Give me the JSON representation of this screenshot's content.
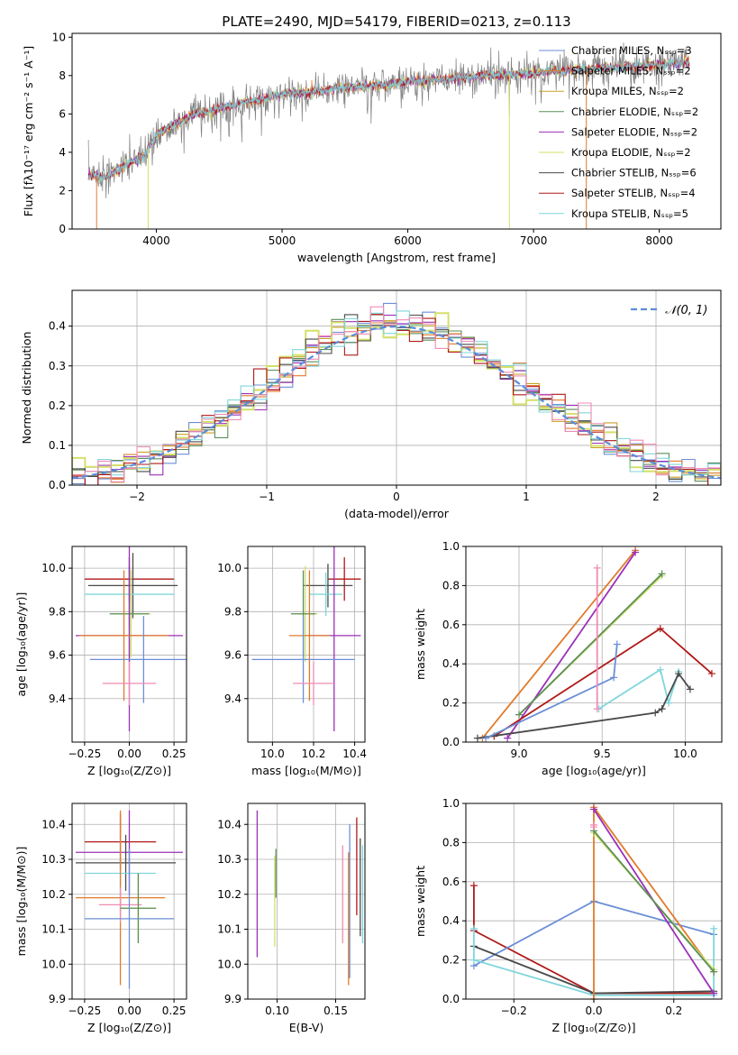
{
  "figure": {
    "title": "PLATE=2490, MJD=54179, FIBERID=0213, z=0.113"
  },
  "colors": {
    "Chabrier MILES": "#6b8fd6",
    "Salpeter MILES": "#e07b2c",
    "Kroupa MILES": "#c9a227",
    "Chabrier ELODIE": "#5a8f5a",
    "Salpeter ELODIE": "#9b30b8",
    "Kroupa ELODIE": "#d4e06a",
    "Chabrier STELIB": "#4a4a4a",
    "Salpeter STELIB": "#b01818",
    "Kroupa STELIB": "#7fd6db",
    "Pink": "#f08cb4",
    "Gauss": "#5b8dd9",
    "Data": "#808080"
  },
  "chart_data": [
    {
      "id": "spectrum",
      "type": "line",
      "xlabel": "wavelength [Angstrom, rest frame]",
      "ylabel": "Flux [fλ10⁻¹⁷ erg cm⁻² s⁻¹ A⁻¹]",
      "xlim": [
        3330,
        8490
      ],
      "ylim": [
        0,
        10.2
      ],
      "xticks": [
        4000,
        5000,
        6000,
        7000,
        8000
      ],
      "yticks": [
        0,
        2,
        4,
        6,
        8,
        10
      ],
      "grid": false,
      "legend_position": "upper-right",
      "legend": [
        "Chabrier MILES, Nₛₛₚ=3",
        "Salpeter MILES, Nₛₛₚ=2",
        "Kroupa MILES, Nₛₛₚ=2",
        "Chabrier ELODIE, Nₛₛₚ=2",
        "Salpeter ELODIE, Nₛₛₚ=2",
        "Kroupa ELODIE, Nₛₛₚ=2",
        "Chabrier STELIB, Nₛₛₚ=6",
        "Salpeter STELIB, Nₛₛₚ=4",
        "Kroupa STELIB, Nₛₛₚ=5"
      ],
      "x": [
        3500,
        3600,
        3700,
        3800,
        3900,
        4000,
        4100,
        4200,
        4300,
        4400,
        4500,
        4600,
        4700,
        4800,
        4900,
        5000,
        5100,
        5200,
        5300,
        5400,
        5500,
        5600,
        5700,
        5800,
        5900,
        6000,
        6100,
        6200,
        6300,
        6400,
        6500,
        6600,
        6700,
        6800,
        6900,
        7000,
        7100,
        7200,
        7300,
        7400,
        7500,
        7600,
        7700,
        7800,
        7900,
        8000,
        8100,
        8200
      ],
      "series": [
        {
          "name": "data",
          "values": [
            2.9,
            2.8,
            3.2,
            3.5,
            3.8,
            4.8,
            5.3,
            5.7,
            6.0,
            6.1,
            6.3,
            6.4,
            6.6,
            6.7,
            6.9,
            7.0,
            7.1,
            7.1,
            7.2,
            7.3,
            7.4,
            7.4,
            7.5,
            7.5,
            7.6,
            7.7,
            7.7,
            7.8,
            7.8,
            7.9,
            7.9,
            8.0,
            8.0,
            8.1,
            8.1,
            8.1,
            8.2,
            8.2,
            8.3,
            8.3,
            8.4,
            8.4,
            8.4,
            8.5,
            8.5,
            8.6,
            8.6,
            8.7
          ]
        },
        {
          "name": "model",
          "values": [
            2.8,
            2.7,
            3.1,
            3.5,
            3.8,
            4.9,
            5.3,
            5.6,
            6.0,
            6.1,
            6.3,
            6.4,
            6.6,
            6.7,
            6.9,
            7.0,
            7.1,
            7.1,
            7.2,
            7.3,
            7.4,
            7.4,
            7.5,
            7.5,
            7.6,
            7.7,
            7.7,
            7.8,
            7.8,
            7.9,
            7.9,
            8.0,
            8.0,
            8.1,
            8.1,
            8.1,
            8.2,
            8.2,
            8.3,
            8.3,
            8.4,
            8.4,
            8.4,
            8.5,
            8.5,
            8.6,
            8.6,
            8.7
          ]
        }
      ]
    },
    {
      "id": "residuals",
      "type": "histogram",
      "xlabel": "(data-model)/error",
      "ylabel": "Normed distribution",
      "xlim": [
        -2.5,
        2.5
      ],
      "ylim": [
        0,
        0.49
      ],
      "xticks": [
        -2,
        -1,
        0,
        1,
        2
      ],
      "yticks": [
        0.0,
        0.1,
        0.2,
        0.3,
        0.4
      ],
      "grid": true,
      "legend_position": "upper-right",
      "legend": [
        "𝒩(0, 1)"
      ],
      "bin_width": 0.1
    },
    {
      "id": "age-vs-Z",
      "type": "errorbar",
      "xlabel": "Z [log₁₀(Z/Z⊙)]",
      "ylabel": "age  [log₁₀(age/yr)]",
      "xlim": [
        -0.32,
        0.32
      ],
      "ylim": [
        9.2,
        10.1
      ],
      "xticks": [
        -0.25,
        0.0,
        0.25
      ],
      "yticks": [
        9.4,
        9.6,
        9.8,
        10.0
      ],
      "grid": true,
      "points": [
        {
          "model": "Salpeter STELIB",
          "x": 0.0,
          "y": 9.95,
          "xerr": 0.25,
          "yerr": 0.1
        },
        {
          "model": "Chabrier STELIB",
          "x": 0.02,
          "y": 9.92,
          "xerr": 0.25,
          "yerr": 0.15
        },
        {
          "model": "Kroupa STELIB",
          "x": 0.0,
          "y": 9.88,
          "xerr": 0.25,
          "yerr": 0.15
        },
        {
          "model": "Kroupa ELODIE",
          "x": 0.01,
          "y": 9.79,
          "xerr": 0.11,
          "yerr": 0.2
        },
        {
          "model": "Chabrier ELODIE",
          "x": 0.0,
          "y": 9.79,
          "xerr": 0.11,
          "yerr": 0.22
        },
        {
          "model": "Salpeter ELODIE",
          "x": 0.0,
          "y": 9.69,
          "xerr": 0.3,
          "yerr": 0.44
        },
        {
          "model": "Salpeter MILES",
          "x": -0.03,
          "y": 9.69,
          "xerr": 0.25,
          "yerr": 0.3
        },
        {
          "model": "Chabrier MILES",
          "x": 0.08,
          "y": 9.58,
          "xerr": 0.3,
          "yerr": 0.2
        },
        {
          "model": "Pink",
          "x": 0.0,
          "y": 9.47,
          "xerr": 0.15,
          "yerr": 0.1
        }
      ]
    },
    {
      "id": "age-vs-mass",
      "type": "errorbar",
      "xlabel": "mass [log₁₀(M/M⊙)]",
      "ylabel": "",
      "xlim": [
        9.88,
        10.45
      ],
      "ylim": [
        9.2,
        10.1
      ],
      "xticks": [
        10.0,
        10.2,
        10.4
      ],
      "yticks": [
        9.4,
        9.6,
        9.8,
        10.0
      ],
      "grid": true,
      "points": [
        {
          "model": "Salpeter STELIB",
          "x": 10.35,
          "y": 9.95,
          "xerr": 0.08,
          "yerr": 0.1
        },
        {
          "model": "Chabrier STELIB",
          "x": 10.27,
          "y": 9.92,
          "xerr": 0.12,
          "yerr": 0.1
        },
        {
          "model": "Kroupa STELIB",
          "x": 10.26,
          "y": 9.88,
          "xerr": 0.08,
          "yerr": 0.1
        },
        {
          "model": "Kroupa ELODIE",
          "x": 10.16,
          "y": 9.79,
          "xerr": 0.06,
          "yerr": 0.22
        },
        {
          "model": "Chabrier ELODIE",
          "x": 10.15,
          "y": 9.79,
          "xerr": 0.06,
          "yerr": 0.2
        },
        {
          "model": "Salpeter ELODIE",
          "x": 10.3,
          "y": 9.69,
          "xerr": 0.13,
          "yerr": 0.44
        },
        {
          "model": "Salpeter MILES",
          "x": 10.18,
          "y": 9.69,
          "xerr": 0.1,
          "yerr": 0.3
        },
        {
          "model": "Chabrier MILES",
          "x": 10.15,
          "y": 9.58,
          "xerr": 0.25,
          "yerr": 0.2
        },
        {
          "model": "Pink",
          "x": 10.2,
          "y": 9.47,
          "xerr": 0.1,
          "yerr": 0.1
        }
      ]
    },
    {
      "id": "weight-vs-age",
      "type": "line",
      "xlabel": "age  [log₁₀(age/yr)]",
      "ylabel": "mass weight",
      "xlim": [
        8.68,
        10.22
      ],
      "ylim": [
        0,
        1.0
      ],
      "xticks": [
        9.0,
        9.5,
        10.0
      ],
      "yticks": [
        0.0,
        0.2,
        0.4,
        0.6,
        0.8,
        1.0
      ],
      "grid": true,
      "series": [
        {
          "model": "Salpeter MILES",
          "points": [
            [
              8.78,
              0.02
            ],
            [
              9.7,
              0.98
            ]
          ]
        },
        {
          "model": "Salpeter ELODIE",
          "points": [
            [
              8.93,
              0.02
            ],
            [
              9.7,
              0.97
            ]
          ]
        },
        {
          "model": "Kroupa ELODIE",
          "points": [
            [
              9.0,
              0.14
            ],
            [
              9.86,
              0.85
            ]
          ]
        },
        {
          "model": "Chabrier ELODIE",
          "points": [
            [
              9.0,
              0.14
            ],
            [
              9.86,
              0.86
            ]
          ]
        },
        {
          "model": "Salpeter STELIB",
          "points": [
            [
              8.85,
              0.03
            ],
            [
              9.85,
              0.58
            ],
            [
              10.16,
              0.35
            ]
          ]
        },
        {
          "model": "Kroupa STELIB",
          "points": [
            [
              9.48,
              0.17
            ],
            [
              9.85,
              0.37
            ],
            [
              9.9,
              0.2
            ],
            [
              9.96,
              0.36
            ]
          ]
        },
        {
          "model": "Chabrier STELIB",
          "points": [
            [
              8.75,
              0.02
            ],
            [
              9.82,
              0.15
            ],
            [
              9.86,
              0.17
            ],
            [
              9.96,
              0.35
            ],
            [
              10.03,
              0.27
            ]
          ]
        },
        {
          "model": "Chabrier MILES",
          "points": [
            [
              8.8,
              0.02
            ],
            [
              9.57,
              0.33
            ],
            [
              9.59,
              0.5
            ]
          ]
        },
        {
          "model": "Pink",
          "points": [
            [
              9.47,
              0.17
            ],
            [
              9.47,
              0.89
            ]
          ]
        }
      ]
    },
    {
      "id": "mass-vs-Z",
      "type": "errorbar",
      "xlabel": "Z [log₁₀(Z/Z⊙)]",
      "ylabel": "mass [log₁₀(M/M⊙)]",
      "xlim": [
        -0.32,
        0.32
      ],
      "ylim": [
        9.9,
        10.46
      ],
      "xticks": [
        -0.25,
        0.0,
        0.25
      ],
      "yticks": [
        9.9,
        10.0,
        10.1,
        10.2,
        10.3,
        10.4
      ],
      "grid": true,
      "points": [
        {
          "model": "Salpeter STELIB",
          "x": -0.05,
          "y": 10.35,
          "xerr": 0.2,
          "yerr": 0.08
        },
        {
          "model": "Salpeter ELODIE",
          "x": 0.0,
          "y": 10.32,
          "xerr": 0.3,
          "yerr": 0.12
        },
        {
          "model": "Chabrier STELIB",
          "x": -0.02,
          "y": 10.29,
          "xerr": 0.28,
          "yerr": 0.08
        },
        {
          "model": "Kroupa STELIB",
          "x": -0.05,
          "y": 10.26,
          "xerr": 0.2,
          "yerr": 0.1
        },
        {
          "model": "Salpeter MILES",
          "x": -0.05,
          "y": 10.19,
          "xerr": 0.25,
          "yerr": 0.25
        },
        {
          "model": "Pink",
          "x": -0.05,
          "y": 10.17,
          "xerr": 0.12,
          "yerr": 0.05
        },
        {
          "model": "Kroupa ELODIE",
          "x": 0.05,
          "y": 10.16,
          "xerr": 0.1,
          "yerr": 0.1
        },
        {
          "model": "Chabrier ELODIE",
          "x": 0.05,
          "y": 10.16,
          "xerr": 0.1,
          "yerr": 0.1
        },
        {
          "model": "Chabrier MILES",
          "x": 0.0,
          "y": 10.13,
          "xerr": 0.25,
          "yerr": 0.2
        }
      ]
    },
    {
      "id": "mass-vs-EBV",
      "type": "errorbar",
      "xlabel": "E(B-V)",
      "ylabel": "",
      "xlim": [
        0.075,
        0.175
      ],
      "ylim": [
        9.9,
        10.46
      ],
      "xticks": [
        0.1,
        0.15
      ],
      "yticks": [
        9.9,
        10.0,
        10.1,
        10.2,
        10.3,
        10.4
      ],
      "grid": true,
      "points": [
        {
          "model": "Salpeter ELODIE",
          "x": 0.083,
          "y": 10.23,
          "xerr": 0,
          "yerr": 0.21
        },
        {
          "model": "Kroupa ELODIE",
          "x": 0.098,
          "y": 10.18,
          "xerr": 0,
          "yerr": 0.13
        },
        {
          "model": "Chabrier ELODIE",
          "x": 0.099,
          "y": 10.26,
          "xerr": 0,
          "yerr": 0.07
        },
        {
          "model": "Pink",
          "x": 0.156,
          "y": 10.2,
          "xerr": 0,
          "yerr": 0.14
        },
        {
          "model": "Salpeter MILES",
          "x": 0.161,
          "y": 10.13,
          "xerr": 0,
          "yerr": 0.19
        },
        {
          "model": "Chabrier MILES",
          "x": 0.162,
          "y": 10.18,
          "xerr": 0,
          "yerr": 0.22
        },
        {
          "model": "Salpeter STELIB",
          "x": 0.168,
          "y": 10.28,
          "xerr": 0,
          "yerr": 0.14
        },
        {
          "model": "Chabrier STELIB",
          "x": 0.171,
          "y": 10.22,
          "xerr": 0,
          "yerr": 0.14
        },
        {
          "model": "Kroupa STELIB",
          "x": 0.173,
          "y": 10.2,
          "xerr": 0,
          "yerr": 0.14
        }
      ]
    },
    {
      "id": "weight-vs-Z",
      "type": "line",
      "xlabel": "Z [log₁₀(Z/Z⊙)]",
      "ylabel": "mass weight",
      "xlim": [
        -0.32,
        0.32
      ],
      "ylim": [
        0,
        1.0
      ],
      "xticks": [
        -0.2,
        0.0,
        0.2
      ],
      "yticks": [
        0.0,
        0.2,
        0.4,
        0.6,
        0.8,
        1.0
      ],
      "grid": true,
      "series": [
        {
          "model": "Salpeter STELIB",
          "points": [
            [
              -0.3,
              0.58
            ],
            [
              -0.3,
              0.35
            ],
            [
              0.0,
              0.03
            ],
            [
              0.3,
              0.03
            ]
          ]
        },
        {
          "model": "Chabrier MILES",
          "points": [
            [
              -0.3,
              0.17
            ],
            [
              0.0,
              0.5
            ],
            [
              0.3,
              0.33
            ]
          ]
        },
        {
          "model": "Chabrier STELIB",
          "points": [
            [
              -0.3,
              0.27
            ],
            [
              0.0,
              0.03
            ],
            [
              0.3,
              0.04
            ]
          ]
        },
        {
          "model": "Kroupa STELIB",
          "points": [
            [
              -0.3,
              0.36
            ],
            [
              -0.3,
              0.2
            ],
            [
              0.0,
              0.02
            ],
            [
              0.3,
              0.02
            ],
            [
              0.3,
              0.36
            ]
          ]
        },
        {
          "model": "Salpeter MILES",
          "points": [
            [
              0.0,
              0.0
            ],
            [
              0.0,
              0.98
            ],
            [
              0.3,
              0.14
            ]
          ]
        },
        {
          "model": "Salpeter ELODIE",
          "points": [
            [
              0.0,
              0.97
            ],
            [
              0.3,
              0.03
            ]
          ]
        },
        {
          "model": "Kroupa ELODIE",
          "points": [
            [
              0.0,
              0.85
            ],
            [
              0.3,
              0.15
            ]
          ]
        },
        {
          "model": "Chabrier ELODIE",
          "points": [
            [
              0.0,
              0.86
            ],
            [
              0.3,
              0.14
            ]
          ]
        },
        {
          "model": "Pink",
          "points": [
            [
              0.0,
              0.89
            ],
            [
              0.0,
              0.88
            ]
          ]
        }
      ]
    }
  ]
}
